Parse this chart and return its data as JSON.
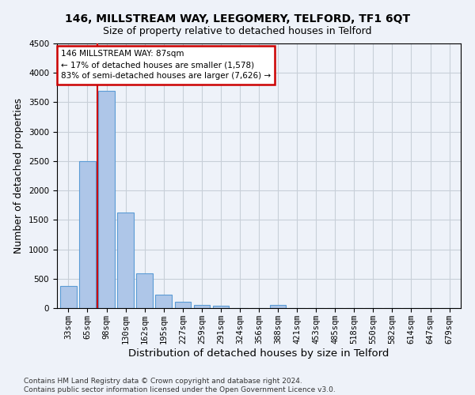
{
  "title": "146, MILLSTREAM WAY, LEEGOMERY, TELFORD, TF1 6QT",
  "subtitle": "Size of property relative to detached houses in Telford",
  "xlabel": "Distribution of detached houses by size in Telford",
  "ylabel": "Number of detached properties",
  "categories": [
    "33sqm",
    "65sqm",
    "98sqm",
    "130sqm",
    "162sqm",
    "195sqm",
    "227sqm",
    "259sqm",
    "291sqm",
    "324sqm",
    "356sqm",
    "388sqm",
    "421sqm",
    "453sqm",
    "485sqm",
    "518sqm",
    "550sqm",
    "582sqm",
    "614sqm",
    "647sqm",
    "679sqm"
  ],
  "values": [
    370,
    2500,
    3700,
    1630,
    590,
    230,
    110,
    60,
    40,
    0,
    0,
    50,
    0,
    0,
    0,
    0,
    0,
    0,
    0,
    0,
    0
  ],
  "bar_color": "#aec6e8",
  "bar_edge_color": "#5b9bd5",
  "annotation_line1": "146 MILLSTREAM WAY: 87sqm",
  "annotation_line2": "← 17% of detached houses are smaller (1,578)",
  "annotation_line3": "83% of semi-detached houses are larger (7,626) →",
  "annotation_box_color": "#ffffff",
  "annotation_box_edge_color": "#cc0000",
  "ylim": [
    0,
    4500
  ],
  "yticks": [
    0,
    500,
    1000,
    1500,
    2000,
    2500,
    3000,
    3500,
    4000,
    4500
  ],
  "vline_x": 1.5,
  "vline_color": "#cc0000",
  "footer": "Contains HM Land Registry data © Crown copyright and database right 2024.\nContains public sector information licensed under the Open Government Licence v3.0.",
  "bg_color": "#eef2f9",
  "plot_bg_color": "#eef2f9",
  "title_fontsize": 10,
  "subtitle_fontsize": 9,
  "axis_label_fontsize": 9,
  "tick_fontsize": 7.5,
  "footer_fontsize": 6.5
}
